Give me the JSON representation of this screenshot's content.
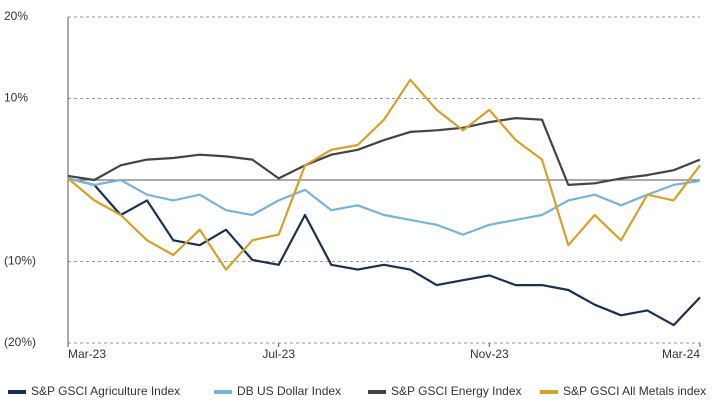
{
  "chart_data": {
    "type": "line",
    "x": [
      0,
      0.5,
      1,
      1.5,
      2,
      2.5,
      3,
      3.5,
      4,
      4.5,
      5,
      5.5,
      6,
      6.5,
      7,
      7.5,
      8,
      8.5,
      9,
      9.5,
      10,
      10.5,
      11,
      11.5,
      12
    ],
    "xlim": [
      0,
      12
    ],
    "xticks": [
      {
        "value": 0,
        "label": "Mar-23"
      },
      {
        "value": 4,
        "label": "Jul-23"
      },
      {
        "value": 8,
        "label": "Nov-23"
      },
      {
        "value": 12,
        "label": "Mar-24"
      }
    ],
    "ylim": [
      -20,
      20
    ],
    "yticks": [
      {
        "value": -20,
        "label": "(20%)"
      },
      {
        "value": -10,
        "label": "(10%)"
      },
      {
        "value": 0,
        "label": ""
      },
      {
        "value": 10,
        "label": "10%"
      },
      {
        "value": 20,
        "label": "20%"
      }
    ],
    "grid": true,
    "legend": "bottom",
    "series": [
      {
        "name": "S&P GSCI Agriculture Index",
        "color": "#1b2f50",
        "values": [
          0.2,
          -0.6,
          -4.3,
          -2.5,
          -7.4,
          -8.0,
          -6.1,
          -9.8,
          -10.4,
          -4.3,
          -10.4,
          -11.0,
          -10.4,
          -11.0,
          -12.9,
          -12.3,
          -11.7,
          -12.9,
          -12.9,
          -13.5,
          -15.3,
          -16.6,
          -16.0,
          -17.8,
          -14.4
        ]
      },
      {
        "name": "DB US Dollar Index",
        "color": "#7ab3d8",
        "values": [
          0.2,
          -0.6,
          0,
          -1.8,
          -2.5,
          -1.8,
          -3.7,
          -4.3,
          -2.5,
          -1.2,
          -3.7,
          -3.1,
          -4.3,
          -4.9,
          -5.5,
          -6.7,
          -5.5,
          -4.9,
          -4.3,
          -2.5,
          -1.8,
          -3.1,
          -1.8,
          -0.6,
          -0.1
        ]
      },
      {
        "name": "S&P GSCI Energy Index",
        "color": "#444444",
        "values": [
          0.5,
          0,
          1.8,
          2.5,
          2.7,
          3.1,
          2.9,
          2.5,
          0.2,
          1.8,
          3.1,
          3.7,
          4.9,
          5.9,
          6.1,
          6.4,
          7.1,
          7.6,
          7.4,
          -0.6,
          -0.4,
          0.2,
          0.6,
          1.2,
          2.5
        ]
      },
      {
        "name": "S&P GSCI All Metals index",
        "color": "#d4a12a",
        "values": [
          0.2,
          -2.5,
          -4.3,
          -7.4,
          -9.2,
          -6.1,
          -11.0,
          -7.4,
          -6.7,
          1.8,
          3.7,
          4.3,
          7.4,
          12.3,
          8.6,
          6.1,
          8.6,
          4.9,
          2.5,
          -8.0,
          -4.3,
          -7.4,
          -1.8,
          -2.5,
          1.8
        ]
      }
    ]
  }
}
